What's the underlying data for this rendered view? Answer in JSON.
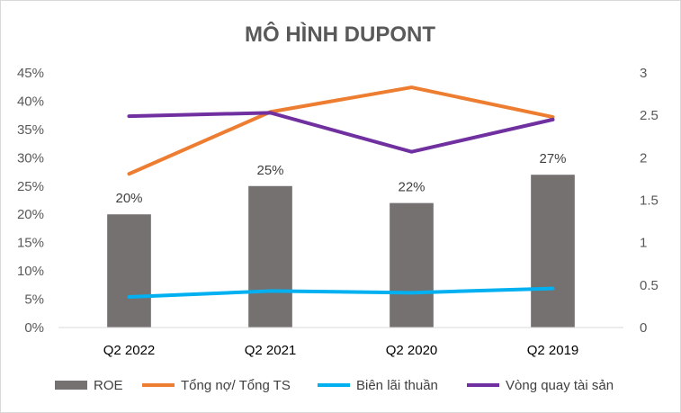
{
  "chart_data": {
    "type": "bar",
    "title": "MÔ HÌNH DUPONT",
    "categories": [
      "Q2 2022",
      "Q2 2021",
      "Q2 2020",
      "Q2 2019"
    ],
    "y_left": {
      "ylim": [
        0,
        0.45
      ],
      "ticks": [
        0,
        0.05,
        0.1,
        0.15,
        0.2,
        0.25,
        0.3,
        0.35,
        0.4,
        0.45
      ],
      "tick_labels": [
        "0%",
        "5%",
        "10%",
        "15%",
        "20%",
        "25%",
        "30%",
        "35%",
        "40%",
        "45%"
      ]
    },
    "y_right": {
      "ylim": [
        0,
        3
      ],
      "ticks": [
        0,
        0.5,
        1,
        1.5,
        2,
        2.5,
        3
      ],
      "tick_labels": [
        "0",
        "0.5",
        "1",
        "1.5",
        "2",
        "2.5",
        "3"
      ]
    },
    "grid": false,
    "legend_position": "bottom",
    "series": [
      {
        "name": "ROE",
        "type": "bar",
        "axis": "left",
        "color": "#767171",
        "values": [
          0.2,
          0.25,
          0.22,
          0.27
        ],
        "data_labels": [
          "20%",
          "25%",
          "22%",
          "27%"
        ]
      },
      {
        "name": "Tổng nợ/ Tổng TS",
        "type": "line",
        "axis": "right",
        "color": "#ed7d31",
        "values": [
          1.81,
          2.54,
          2.83,
          2.48
        ]
      },
      {
        "name": "Biên lãi thuần",
        "type": "line",
        "axis": "right",
        "color": "#00b0f0",
        "values": [
          0.36,
          0.43,
          0.41,
          0.46
        ]
      },
      {
        "name": "Vòng quay tài sản",
        "type": "line",
        "axis": "right",
        "color": "#7030a0",
        "values": [
          2.49,
          2.53,
          2.07,
          2.45
        ]
      }
    ]
  }
}
